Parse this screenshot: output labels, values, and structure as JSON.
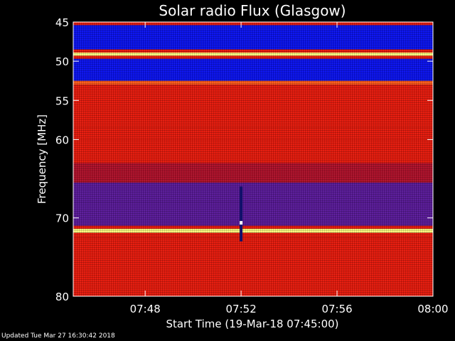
{
  "chart_data": {
    "type": "heatmap",
    "title": "Solar radio Flux (Glasgow)",
    "xlabel": "Start Time (19-Mar-18 07:45:00)",
    "ylabel": "Frequency [MHz]",
    "x_range": [
      "07:45",
      "08:00"
    ],
    "ylim": [
      45,
      80
    ],
    "y_inverted": true,
    "x_ticks": [
      "07:48",
      "07:52",
      "07:56",
      "08:00"
    ],
    "y_ticks": [
      45,
      50,
      55,
      60,
      70,
      80
    ],
    "colors": {
      "blue_band": "#0a12f0",
      "red_band": "#e81a0c",
      "purple_band": "#5a1a9a",
      "bright_line": "#ffff80",
      "white_line": "#ffffff"
    },
    "bands": [
      {
        "from": 45.0,
        "to": 45.4,
        "level": "red"
      },
      {
        "from": 45.4,
        "to": 48.5,
        "level": "blue"
      },
      {
        "from": 48.5,
        "to": 48.9,
        "level": "red"
      },
      {
        "from": 48.9,
        "to": 49.3,
        "level": "bright"
      },
      {
        "from": 49.3,
        "to": 49.7,
        "level": "red"
      },
      {
        "from": 49.7,
        "to": 52.5,
        "level": "blue"
      },
      {
        "from": 52.5,
        "to": 53.0,
        "level": "bright_red"
      },
      {
        "from": 53.0,
        "to": 58.5,
        "level": "red"
      },
      {
        "from": 58.5,
        "to": 60.0,
        "level": "red"
      },
      {
        "from": 60.0,
        "to": 63.0,
        "level": "red"
      },
      {
        "from": 63.0,
        "to": 65.5,
        "level": "dark_red"
      },
      {
        "from": 65.5,
        "to": 68.0,
        "level": "purple"
      },
      {
        "from": 68.0,
        "to": 71.0,
        "level": "purple"
      },
      {
        "from": 71.0,
        "to": 71.4,
        "level": "red"
      },
      {
        "from": 71.4,
        "to": 71.9,
        "level": "bright"
      },
      {
        "from": 71.9,
        "to": 72.5,
        "level": "red"
      },
      {
        "from": 72.5,
        "to": 80.0,
        "level": "red"
      }
    ],
    "burst": {
      "time": "07:52",
      "from_freq": 66.0,
      "to_freq": 73.0
    }
  },
  "footer": {
    "updated": "Updated Tue Mar 27 16:30:42 2018"
  }
}
